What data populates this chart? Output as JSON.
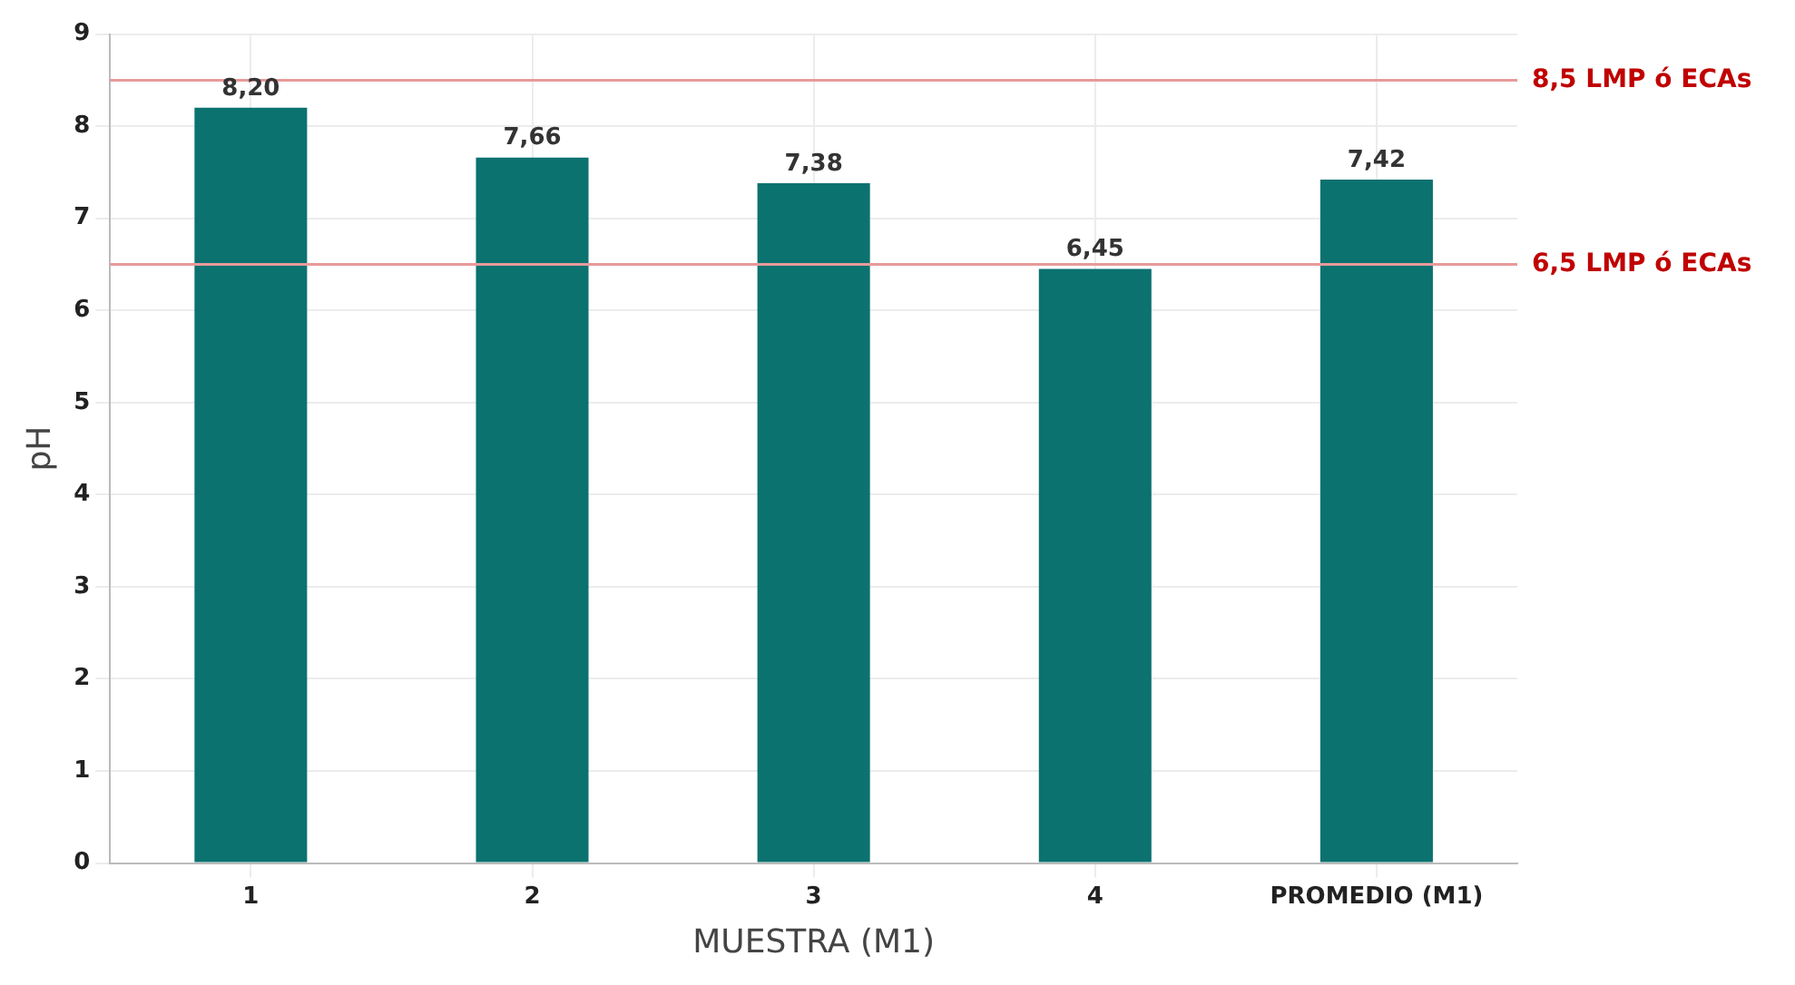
{
  "chart_data": {
    "type": "bar",
    "xlabel": "MUESTRA (M1)",
    "ylabel": "pH",
    "categories": [
      "1",
      "2",
      "3",
      "4",
      "PROMEDIO (M1)"
    ],
    "values": [
      8.2,
      7.66,
      7.38,
      6.45,
      7.42
    ],
    "color": "#0b7270",
    "value_labels": [
      "8,20",
      "7,66",
      "7,38",
      "6,45",
      "7,42"
    ],
    "ylim": [
      0,
      9
    ],
    "yticks": [
      0,
      1,
      2,
      3,
      4,
      5,
      6,
      7,
      8,
      9
    ],
    "grid": true,
    "ref_lines": [
      {
        "axis": "y",
        "value": 8.5,
        "label": "8,5 LMP ó ECAs",
        "color": "#e89a9a"
      },
      {
        "axis": "y",
        "value": 6.5,
        "label": "6,5 LMP ó ECAs",
        "color": "#e89a9a"
      }
    ]
  }
}
